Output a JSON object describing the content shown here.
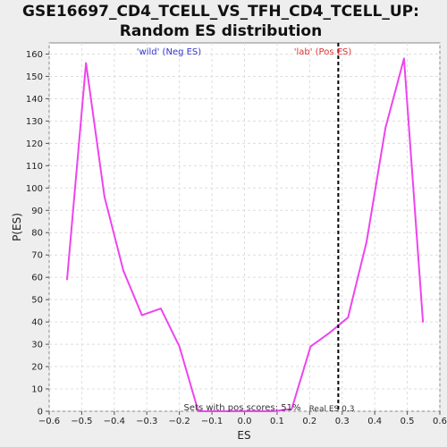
{
  "chart_data": {
    "type": "line",
    "title_line1": "GSE16697_CD4_TCELL_VS_TFH_CD4_TCELL_UP:",
    "title_line2": "Random ES distribution",
    "xlabel": "ES",
    "ylabel": "P(ES)",
    "xlim": [
      -0.6,
      0.6
    ],
    "ylim": [
      0,
      165
    ],
    "x_ticks": [
      -0.6,
      -0.5,
      -0.4,
      -0.3,
      -0.2,
      -0.1,
      0,
      0.1,
      0.2,
      0.3,
      0.4,
      0.5,
      0.6
    ],
    "x_tick_labels": [
      "−0.6",
      "−0.5",
      "−0.4",
      "−0.3",
      "−0.2",
      "−0.1",
      "0.0",
      "0.1",
      "0.2",
      "0.3",
      "0.4",
      "0.5",
      "0.6"
    ],
    "y_ticks": [
      0,
      10,
      20,
      30,
      40,
      50,
      60,
      70,
      80,
      90,
      100,
      110,
      120,
      130,
      140,
      150,
      160
    ],
    "grid": true,
    "series": [
      {
        "color": "#ee44ee",
        "x": [
          -0.545,
          -0.487,
          -0.43,
          -0.372,
          -0.315,
          -0.257,
          -0.2,
          -0.142,
          -0.085,
          -0.027,
          0.03,
          0.088,
          0.145,
          0.203,
          0.26,
          0.318,
          0.375,
          0.433,
          0.49,
          0.548
        ],
        "y": [
          59,
          156,
          96,
          63,
          43,
          46,
          29,
          0,
          0,
          0,
          0,
          0,
          1,
          29,
          35,
          42,
          76,
          127,
          158,
          40
        ]
      }
    ],
    "real_es": 0.288,
    "annotations": {
      "wild_label": "'wild' (Neg ES)",
      "lab_label": "'lab' (Pos ES)",
      "pos_scores": "Sets with pos scores: 51%",
      "real_es_label": "Real ES 0.3"
    },
    "colors": {
      "line": "#ee44ee",
      "wild": "#3333cc",
      "lab": "#dd3333",
      "real_es_line": "#000000",
      "plot_bg": "#ffffff",
      "outer_bg": "#eeeeee",
      "grid": "#dddddd"
    }
  }
}
